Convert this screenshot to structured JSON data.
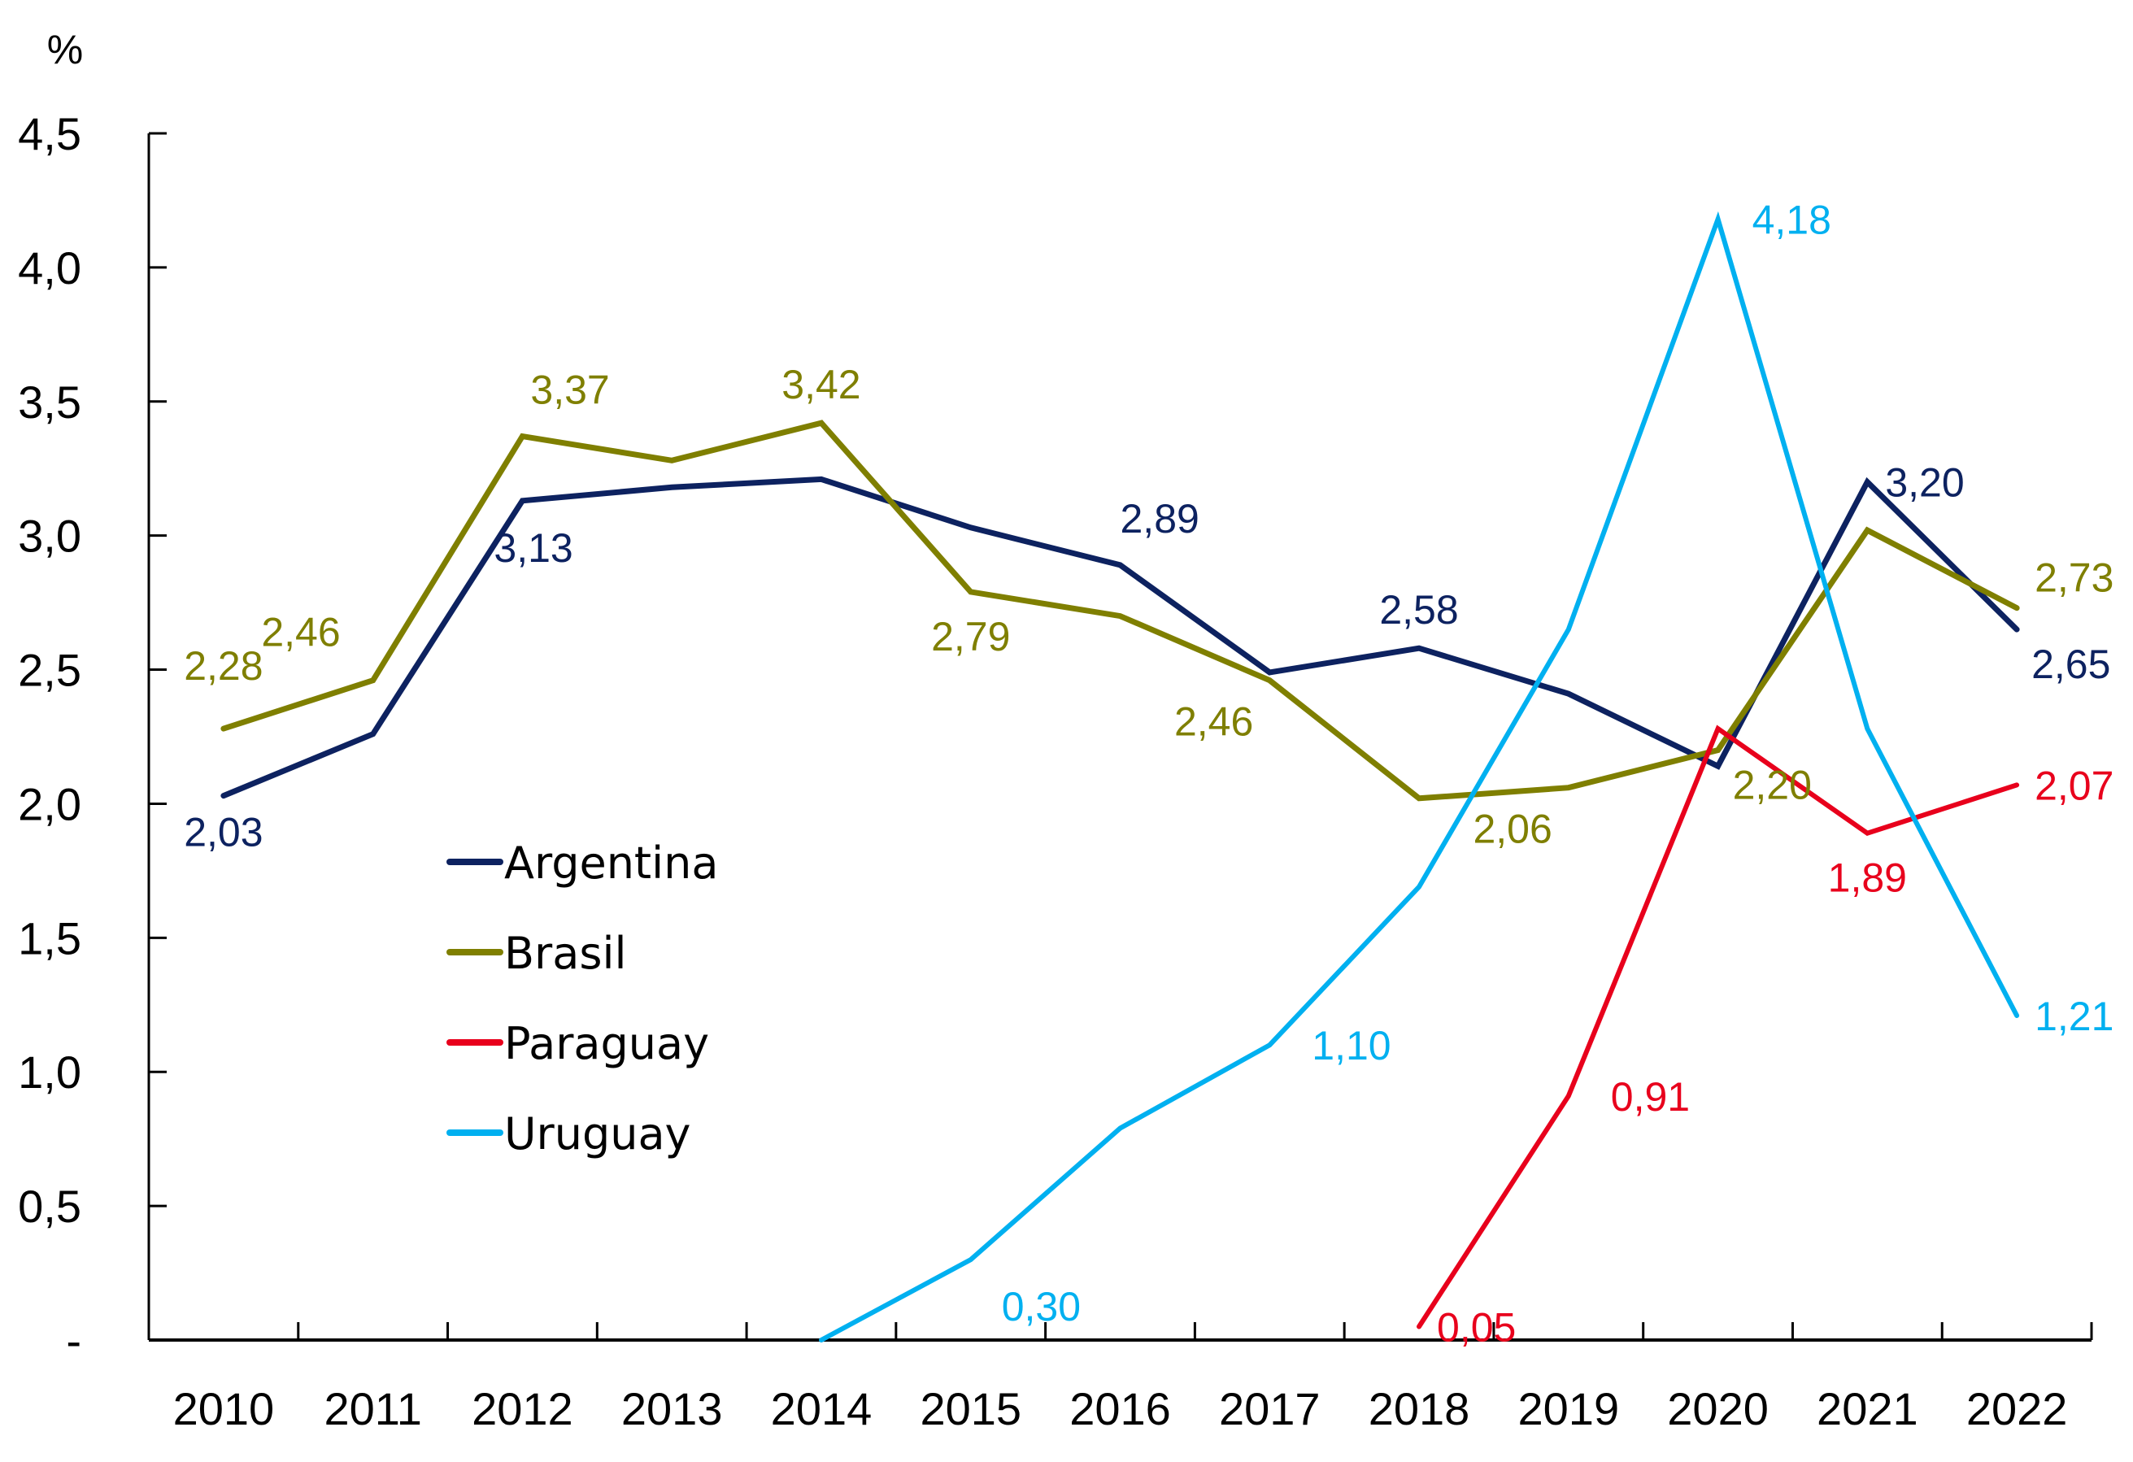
{
  "chart_data": {
    "type": "line",
    "title": "",
    "xlabel": "",
    "ylabel": "%",
    "ylim": [
      0,
      4.5
    ],
    "y_ticks": [
      0,
      0.5,
      1.0,
      1.5,
      2.0,
      2.5,
      3.0,
      3.5,
      4.0,
      4.5
    ],
    "y_tick_labels": [
      "-",
      "0,5",
      "1,0",
      "1,5",
      "2,0",
      "2,5",
      "3,0",
      "3,5",
      "4,0",
      "4,5"
    ],
    "categories": [
      "2010",
      "2011",
      "2012",
      "2013",
      "2014",
      "2015",
      "2016",
      "2017",
      "2018",
      "2019",
      "2020",
      "2021",
      "2022"
    ],
    "grid": false,
    "legend_position": "center-left",
    "series": [
      {
        "name": "Argentina",
        "color": "#0d2260",
        "values": [
          2.03,
          2.26,
          3.13,
          3.18,
          3.21,
          3.03,
          2.89,
          2.49,
          2.58,
          2.41,
          2.14,
          3.2,
          2.65
        ],
        "labels": [
          {
            "index": 0,
            "text": "2,03",
            "pos": "below"
          },
          {
            "index": 2,
            "text": "3,13",
            "pos": "below-right"
          },
          {
            "index": 6,
            "text": "2,89",
            "pos": "above-right"
          },
          {
            "index": 8,
            "text": "2,58",
            "pos": "above"
          },
          {
            "index": 11,
            "text": "3,20",
            "pos": "right"
          },
          {
            "index": 12,
            "text": "2,65",
            "pos": "right-below"
          }
        ]
      },
      {
        "name": "Brasil",
        "color": "#7f7f00",
        "values": [
          2.28,
          2.46,
          3.37,
          3.28,
          3.42,
          2.79,
          2.7,
          2.46,
          2.02,
          2.06,
          2.2,
          3.02,
          2.73
        ],
        "labels": [
          {
            "index": 0,
            "text": "2,28",
            "pos": "above"
          },
          {
            "index": 1,
            "text": "2,46",
            "pos": "above-left"
          },
          {
            "index": 2,
            "text": "3,37",
            "pos": "above-right"
          },
          {
            "index": 4,
            "text": "3,42",
            "pos": "above"
          },
          {
            "index": 5,
            "text": "2,79",
            "pos": "below"
          },
          {
            "index": 7,
            "text": "2,46",
            "pos": "below-left"
          },
          {
            "index": 9,
            "text": "2,06",
            "pos": "below-left"
          },
          {
            "index": 10,
            "text": "2,20",
            "pos": "right-below"
          },
          {
            "index": 12,
            "text": "2,73",
            "pos": "right-above"
          }
        ]
      },
      {
        "name": "Paraguay",
        "color": "#e8001c",
        "values": [
          null,
          null,
          null,
          null,
          null,
          null,
          null,
          null,
          0.05,
          0.91,
          2.28,
          1.89,
          2.07
        ],
        "labels": [
          {
            "index": 8,
            "text": "0,05",
            "pos": "right"
          },
          {
            "index": 9,
            "text": "0,91",
            "pos": "right"
          },
          {
            "index": 11,
            "text": "1,89",
            "pos": "below"
          },
          {
            "index": 12,
            "text": "2,07",
            "pos": "right"
          }
        ]
      },
      {
        "name": "Uruguay",
        "color": "#00b0f0",
        "values": [
          null,
          null,
          null,
          null,
          0.0,
          0.3,
          0.79,
          1.1,
          1.69,
          2.65,
          4.18,
          2.28,
          1.21
        ],
        "labels": [
          {
            "index": 5,
            "text": "0,30",
            "pos": "right-below"
          },
          {
            "index": 7,
            "text": "1,10",
            "pos": "right"
          },
          {
            "index": 10,
            "text": "4,18",
            "pos": "right"
          },
          {
            "index": 12,
            "text": "1,21",
            "pos": "right"
          }
        ]
      }
    ]
  }
}
